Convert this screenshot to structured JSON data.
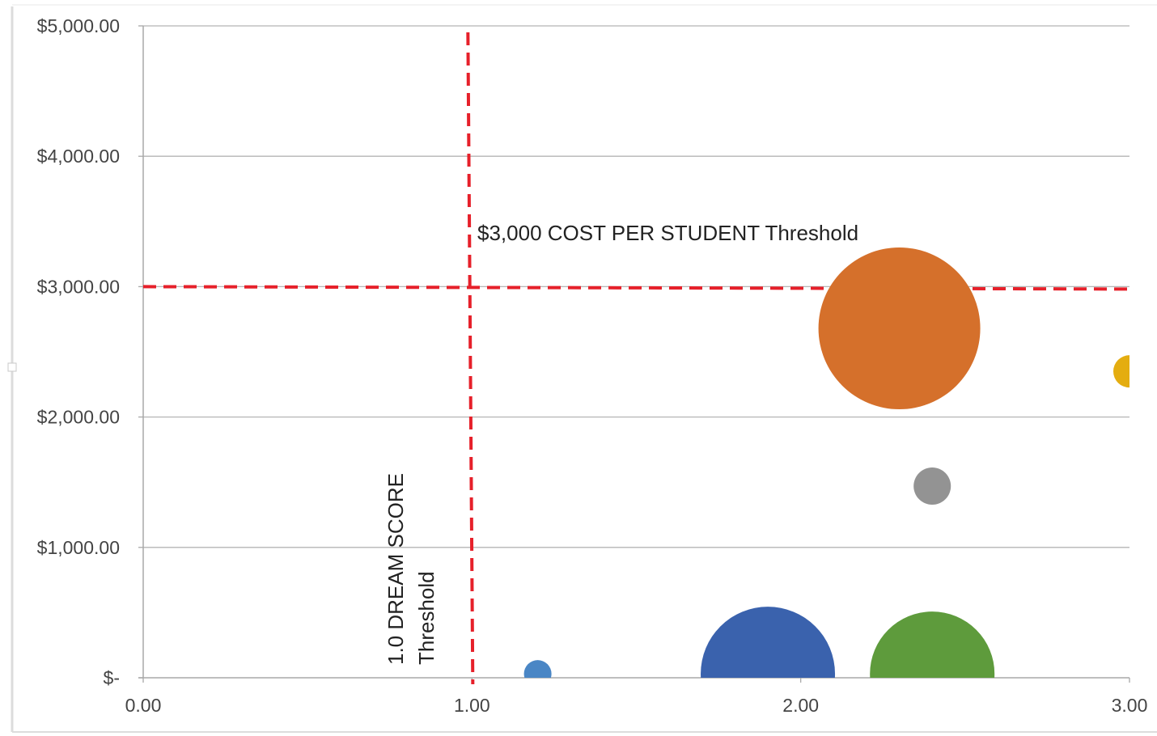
{
  "chart_data": {
    "type": "bubble",
    "title": "",
    "xlabel": "",
    "ylabel": "",
    "xlim": [
      0,
      3
    ],
    "ylim": [
      0,
      5000
    ],
    "x_ticks": [
      {
        "value": 0,
        "label": "0.00"
      },
      {
        "value": 1,
        "label": "1.00"
      },
      {
        "value": 2,
        "label": "2.00"
      },
      {
        "value": 3,
        "label": "3.00"
      }
    ],
    "y_ticks": [
      {
        "value": 0,
        "label": "$-"
      },
      {
        "value": 1000,
        "label": "$1,000.00"
      },
      {
        "value": 2000,
        "label": "$2,000.00"
      },
      {
        "value": 3000,
        "label": "$3,000.00"
      },
      {
        "value": 4000,
        "label": "$4,000.00"
      },
      {
        "value": 5000,
        "label": "$5,000.00"
      }
    ],
    "grid": {
      "horizontal": true,
      "vertical": false
    },
    "legend": "none",
    "points": [
      {
        "x": 1.2,
        "y": 30,
        "size": 17,
        "color": "#4a86c5"
      },
      {
        "x": 1.9,
        "y": 30,
        "size": 83,
        "color": "#3a62ad"
      },
      {
        "x": 2.3,
        "y": 2680,
        "size": 100,
        "color": "#d5702b"
      },
      {
        "x": 2.4,
        "y": 1470,
        "size": 23,
        "color": "#939393"
      },
      {
        "x": 2.4,
        "y": 30,
        "size": 77,
        "color": "#5e9b3c"
      },
      {
        "x": 3.0,
        "y": 2350,
        "size": 20,
        "color": "#e4ad10"
      }
    ],
    "thresholds": [
      {
        "axis": "y",
        "value": 3000,
        "label": "$3,000 COST PER STUDENT Threshold",
        "color": "#e6202a"
      },
      {
        "axis": "x",
        "value": 1,
        "label_lines": [
          "1.0 DREAM SCORE",
          "Threshold"
        ],
        "color": "#e6202a"
      }
    ]
  }
}
